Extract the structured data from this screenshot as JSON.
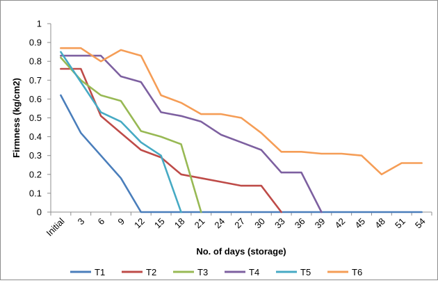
{
  "chart_data": {
    "type": "line",
    "title": "",
    "xlabel": "No. of days (storage)",
    "ylabel": "Firmness (kg/cm2)",
    "ylim": [
      0,
      1
    ],
    "yticks": [
      "0",
      "0.1",
      "0.2",
      "0.3",
      "0.4",
      "0.5",
      "0.6",
      "0.7",
      "0.8",
      "0.9",
      "1"
    ],
    "grid": false,
    "legend_position": "bottom",
    "categories": [
      "Initial",
      "3",
      "6",
      "9",
      "12",
      "15",
      "18",
      "21",
      "24",
      "27",
      "30",
      "33",
      "36",
      "39",
      "42",
      "45",
      "48",
      "51",
      "54"
    ],
    "series": [
      {
        "name": "T1",
        "color": "#4a7ebb",
        "values": [
          0.62,
          0.42,
          0.3,
          0.18,
          0.0,
          0.0,
          0.0,
          0.0,
          0.0,
          0.0,
          0.0,
          0.0,
          0.0,
          0.0,
          0.0,
          0.0,
          0.0,
          0.0,
          0.0
        ]
      },
      {
        "name": "T2",
        "color": "#be4b48",
        "values": [
          0.76,
          0.76,
          0.51,
          0.42,
          0.33,
          0.29,
          0.2,
          0.18,
          0.16,
          0.14,
          0.14,
          0.0,
          null,
          null,
          null,
          null,
          null,
          null,
          null
        ]
      },
      {
        "name": "T3",
        "color": "#98b954",
        "values": [
          0.82,
          0.7,
          0.62,
          0.59,
          0.43,
          0.4,
          0.36,
          0.0,
          null,
          null,
          null,
          null,
          null,
          null,
          null,
          null,
          null,
          null,
          null
        ]
      },
      {
        "name": "T4",
        "color": "#7d60a0",
        "values": [
          0.83,
          0.83,
          0.83,
          0.72,
          0.69,
          0.53,
          0.51,
          0.48,
          0.41,
          0.37,
          0.33,
          0.21,
          0.21,
          0.0,
          null,
          null,
          null,
          null,
          null
        ]
      },
      {
        "name": "T5",
        "color": "#46aac4",
        "values": [
          0.85,
          0.69,
          0.53,
          0.48,
          0.37,
          0.3,
          0.0,
          null,
          null,
          null,
          null,
          null,
          null,
          null,
          null,
          null,
          null,
          null,
          null
        ]
      },
      {
        "name": "T6",
        "color": "#f59d56",
        "values": [
          0.87,
          0.87,
          0.8,
          0.86,
          0.83,
          0.62,
          0.58,
          0.52,
          0.52,
          0.5,
          0.42,
          0.32,
          0.32,
          0.31,
          0.31,
          0.3,
          0.2,
          0.26,
          0.26
        ]
      }
    ]
  }
}
